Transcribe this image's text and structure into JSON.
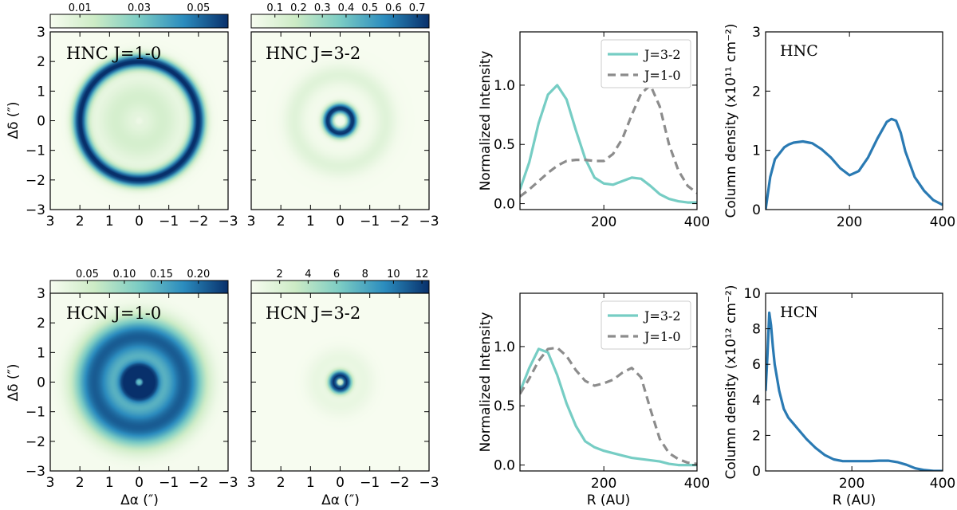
{
  "figure": {
    "maps_xlabel": "Δα (″)",
    "maps_ylabel": "Δδ (″)",
    "profile_xlabel": "R (AU)",
    "intensity_ylabel": "Normalized Intensity",
    "map_ticks": [
      "3",
      "2",
      "1",
      "0",
      "−1",
      "−2",
      "−3"
    ],
    "map_yticks": [
      "3",
      "2",
      "1",
      "0",
      "−1",
      "−2",
      "−3"
    ]
  },
  "colors": {
    "cmap": [
      "#f7fcf0",
      "#ccebc5",
      "#7bccc4",
      "#2b8cbe",
      "#08306b"
    ],
    "j32": "#76cdc4",
    "j10": "#8c8c8c",
    "coldens": "#2a7ab3"
  },
  "maps": [
    {
      "title": "HNC J=1-0",
      "cbar_ticks": [
        "0.01",
        "0.03",
        "0.05"
      ],
      "cbar_range": [
        0.0,
        0.06
      ],
      "rings": [
        {
          "r": 2.0,
          "w": 0.25,
          "amp": 1.0
        },
        {
          "r": 0.8,
          "w": 0.5,
          "amp": 0.12
        }
      ],
      "base": 0.08
    },
    {
      "title": "HNC J=3-2",
      "cbar_ticks": [
        "0.1",
        "0.2",
        "0.3",
        "0.4",
        "0.5",
        "0.6",
        "0.7"
      ],
      "cbar_range": [
        0.0,
        0.75
      ],
      "rings": [
        {
          "r": 0.42,
          "w": 0.18,
          "amp": 1.0
        },
        {
          "r": 1.55,
          "w": 0.35,
          "amp": 0.12
        }
      ],
      "base": 0.02
    },
    {
      "title": "HCN J=1-0",
      "cbar_ticks": [
        "0.05",
        "0.10",
        "0.15",
        "0.20"
      ],
      "cbar_range": [
        0.0,
        0.24
      ],
      "rings": [
        {
          "r": 0.35,
          "w": 0.3,
          "amp": 0.9
        },
        {
          "r": 1.6,
          "w": 0.6,
          "amp": 0.55
        }
      ],
      "base": 0.45
    },
    {
      "title": "HCN J=3-2",
      "cbar_ticks": [
        "2",
        "4",
        "6",
        "8",
        "10",
        "12"
      ],
      "cbar_range": [
        0.0,
        12.5
      ],
      "rings": [
        {
          "r": 0.22,
          "w": 0.18,
          "amp": 1.0
        },
        {
          "r": 0.8,
          "w": 0.4,
          "amp": 0.08
        }
      ],
      "base": 0.0
    }
  ],
  "chart_data": [
    {
      "type": "line",
      "ylabel": "Normalized Intensity",
      "xlabel": "",
      "xlim": [
        20,
        400
      ],
      "ylim": [
        -0.05,
        1.45
      ],
      "xticks": [
        "200",
        "400"
      ],
      "yticks": [
        "0.0",
        "0.5",
        "1.0"
      ],
      "x": [
        20,
        40,
        60,
        80,
        100,
        120,
        140,
        160,
        180,
        200,
        220,
        240,
        260,
        280,
        300,
        320,
        340,
        360,
        380,
        400
      ],
      "series": [
        {
          "name": "J=3-2",
          "values": [
            0.12,
            0.35,
            0.68,
            0.92,
            1.0,
            0.88,
            0.62,
            0.38,
            0.22,
            0.17,
            0.16,
            0.19,
            0.22,
            0.21,
            0.15,
            0.08,
            0.04,
            0.02,
            0.01,
            0.01
          ]
        },
        {
          "name": "J=1-0",
          "values": [
            0.06,
            0.12,
            0.19,
            0.26,
            0.32,
            0.36,
            0.37,
            0.37,
            0.36,
            0.36,
            0.42,
            0.55,
            0.75,
            0.93,
            1.0,
            0.82,
            0.5,
            0.28,
            0.15,
            0.09
          ]
        }
      ]
    },
    {
      "type": "line",
      "ylabel": "Column density (x10¹¹ cm⁻²)",
      "label": "HNC",
      "xlim": [
        20,
        400
      ],
      "ylim": [
        0,
        3
      ],
      "xticks": [
        "200",
        "400"
      ],
      "yticks": [
        "0",
        "1",
        "2",
        "3"
      ],
      "x": [
        20,
        30,
        40,
        50,
        60,
        70,
        80,
        100,
        120,
        140,
        160,
        180,
        200,
        220,
        240,
        260,
        280,
        290,
        300,
        310,
        320,
        340,
        360,
        380,
        400
      ],
      "series": [
        {
          "name": "HNC",
          "values": [
            0.0,
            0.55,
            0.85,
            0.95,
            1.05,
            1.1,
            1.13,
            1.15,
            1.12,
            1.02,
            0.88,
            0.7,
            0.58,
            0.65,
            0.88,
            1.2,
            1.48,
            1.53,
            1.5,
            1.3,
            0.98,
            0.55,
            0.32,
            0.16,
            0.08
          ]
        }
      ]
    },
    {
      "type": "line",
      "ylabel": "Normalized Intensity",
      "xlabel": "R (AU)",
      "xlim": [
        20,
        400
      ],
      "ylim": [
        -0.05,
        1.45
      ],
      "xticks": [
        "200",
        "400"
      ],
      "yticks": [
        "0.0",
        "0.5",
        "1.0"
      ],
      "x": [
        20,
        40,
        60,
        80,
        100,
        120,
        140,
        160,
        180,
        200,
        220,
        240,
        260,
        280,
        300,
        320,
        340,
        360,
        380,
        400
      ],
      "series": [
        {
          "name": "J=3-2",
          "values": [
            0.62,
            0.82,
            0.98,
            0.95,
            0.76,
            0.52,
            0.33,
            0.2,
            0.15,
            0.12,
            0.1,
            0.08,
            0.06,
            0.05,
            0.04,
            0.03,
            0.01,
            0.0,
            0.0,
            0.0
          ]
        },
        {
          "name": "J=1-0",
          "values": [
            0.6,
            0.73,
            0.88,
            0.98,
            0.99,
            0.92,
            0.8,
            0.71,
            0.67,
            0.69,
            0.72,
            0.78,
            0.82,
            0.74,
            0.47,
            0.22,
            0.1,
            0.05,
            0.02,
            0.01
          ]
        }
      ]
    },
    {
      "type": "line",
      "ylabel": "Column density (x10¹² cm⁻²)",
      "label": "HCN",
      "xlabel": "R (AU)",
      "xlim": [
        10,
        400
      ],
      "ylim": [
        0,
        10
      ],
      "xticks": [
        "200",
        "400"
      ],
      "yticks": [
        "0",
        "2",
        "4",
        "6",
        "8",
        "10"
      ],
      "x": [
        10,
        14,
        18,
        22,
        26,
        30,
        40,
        50,
        60,
        70,
        80,
        100,
        120,
        140,
        160,
        180,
        200,
        220,
        240,
        260,
        280,
        300,
        320,
        340,
        360,
        380,
        400
      ],
      "series": [
        {
          "name": "HCN",
          "values": [
            4.5,
            6.5,
            8.9,
            8.2,
            7.0,
            6.0,
            4.5,
            3.5,
            3.0,
            2.7,
            2.4,
            1.8,
            1.3,
            0.9,
            0.65,
            0.55,
            0.55,
            0.55,
            0.55,
            0.58,
            0.58,
            0.5,
            0.35,
            0.15,
            0.05,
            0.0,
            0.0
          ]
        }
      ]
    }
  ]
}
